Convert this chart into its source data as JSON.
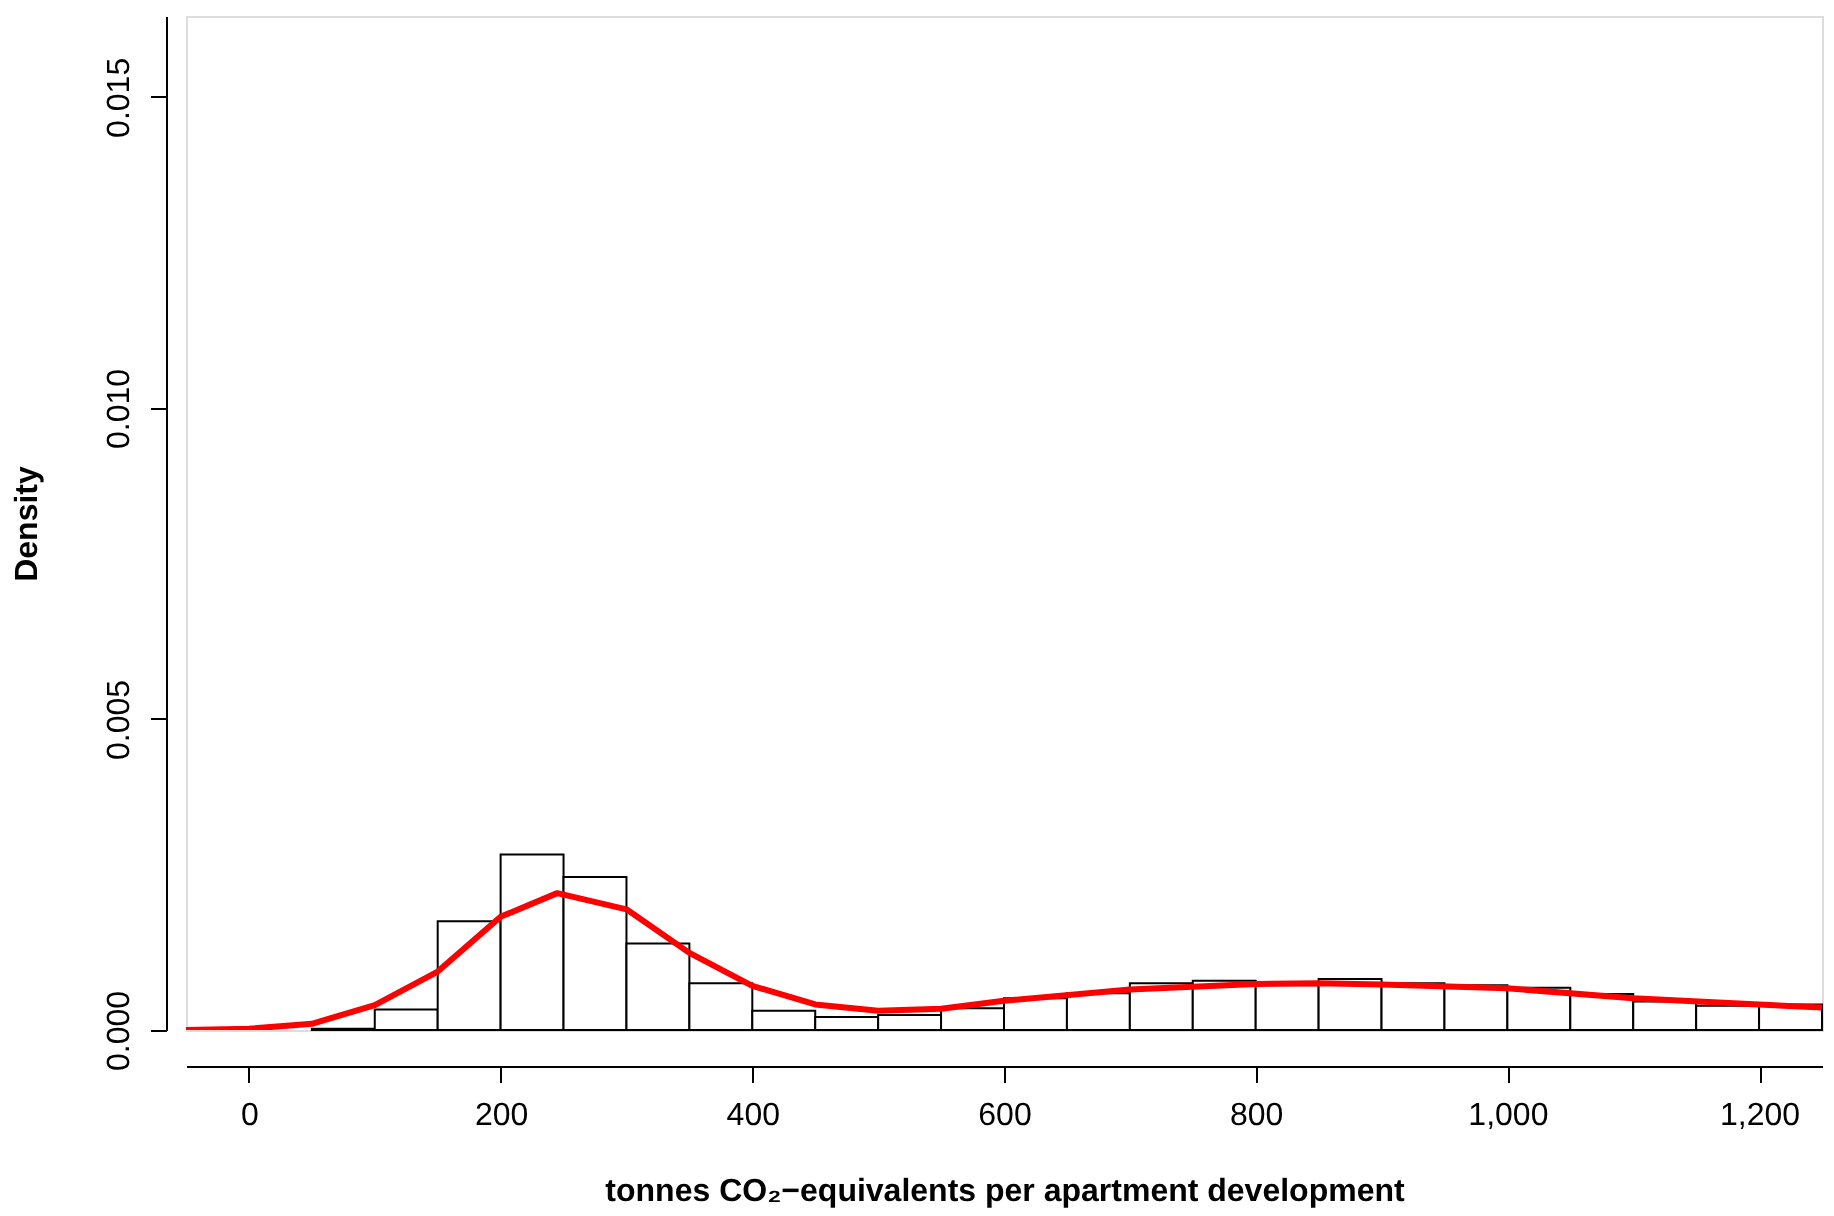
{
  "chart_data": {
    "type": "histogram",
    "xlabel": "tonnes CO₂−equivalents per apartment development",
    "ylabel": "Density",
    "bins": [
      50,
      100,
      150,
      200,
      250,
      300,
      350,
      400,
      450,
      500,
      550,
      600,
      650,
      700,
      750,
      800,
      850,
      900,
      950,
      1000,
      1050,
      1100,
      1150,
      1200,
      1250
    ],
    "values": [
      2e-05,
      0.00033,
      0.00175,
      0.00282,
      0.00246,
      0.00139,
      0.00075,
      0.00031,
      0.00021,
      0.00024,
      0.00035,
      0.00051,
      0.00059,
      0.00075,
      0.00079,
      0.00072,
      0.00082,
      0.00075,
      0.00072,
      0.00068,
      0.00058,
      0.00046,
      0.00039,
      0.00041
    ],
    "color": "#ffffff",
    "series": [
      {
        "type": "line",
        "color": "#ff0000",
        "x": [
          -50,
          0,
          50,
          100,
          150,
          200,
          245,
          300,
          350,
          400,
          450,
          500,
          550,
          600,
          700,
          800,
          850,
          900,
          1000,
          1100,
          1200,
          1250
        ],
        "values": [
          0,
          2e-05,
          0.0001,
          0.0004,
          0.00094,
          0.00182,
          0.0022,
          0.00194,
          0.00124,
          0.00071,
          0.00041,
          0.00031,
          0.00034,
          0.00047,
          0.00065,
          0.00074,
          0.00075,
          0.00073,
          0.00067,
          0.00051,
          0.00041,
          0.00036
        ]
      }
    ],
    "xlim": [
      -50,
      1250
    ],
    "ylim": [
      0,
      0.0163
    ],
    "xticks": [
      0,
      200,
      400,
      600,
      800,
      {
        "value": 1000,
        "label": "1,000"
      },
      {
        "value": 1200,
        "label": "1,200"
      }
    ],
    "yticks": [
      {
        "value": 0,
        "label": "0.000"
      },
      {
        "value": 0.005,
        "label": "0.005"
      },
      {
        "value": 0.01,
        "label": "0.010"
      },
      {
        "value": 0.015,
        "label": "0.015"
      }
    ],
    "grid": false
  }
}
